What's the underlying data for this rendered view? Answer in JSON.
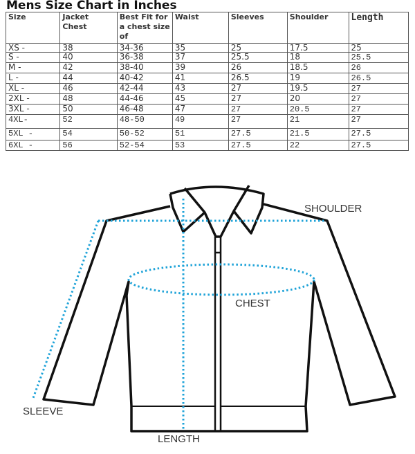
{
  "title": "Mens Size Chart in Inches",
  "table": {
    "headers": [
      "Size",
      "Jacket Chest",
      "Best Fit for a chest size of",
      "Waist",
      "Sleeves",
      "Shoulder",
      "Length"
    ],
    "rows": [
      [
        "XS -",
        "38",
        "34-36",
        "35",
        "25",
        "17.5",
        "25"
      ],
      [
        "S -",
        "40",
        "36-38",
        "37",
        "25.5",
        "18",
        "25.5"
      ],
      [
        "M -",
        "42",
        "38-40",
        "39",
        "26",
        "18.5",
        "26"
      ],
      [
        "L -",
        "44",
        "40-42",
        "41",
        "26.5",
        "19",
        "26.5"
      ],
      [
        "XL -",
        "46",
        "42-44",
        "43",
        "27",
        "19.5",
        "27"
      ],
      [
        "2XL -",
        "48",
        "44-46",
        "45",
        "27",
        "20",
        "27"
      ],
      [
        "3XL -",
        "50",
        "46-48",
        "47",
        "27",
        "20.5",
        "27"
      ],
      [
        "4XL-",
        "52",
        "48-50",
        "49",
        "27",
        "21",
        "27"
      ],
      [
        "5XL -",
        "54",
        "50-52",
        "51",
        "27.5",
        "21.5",
        "27.5"
      ],
      [
        "6XL -",
        "56",
        "52-54",
        "53",
        "27.5",
        "22",
        "27.5"
      ]
    ]
  },
  "diagram": {
    "labels": {
      "shoulder": "SHOULDER",
      "chest": "CHEST",
      "sleeve": "SLEEVE",
      "length": "LENGTH"
    },
    "colors": {
      "outline": "#111111",
      "measure": "#1fa3d8"
    }
  }
}
